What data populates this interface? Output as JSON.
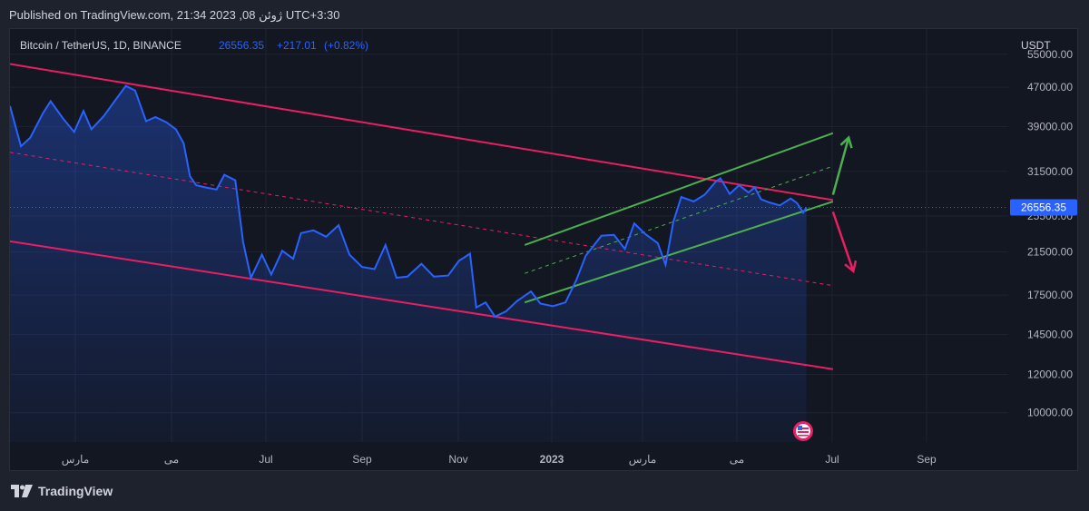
{
  "header": {
    "published_text": "Published on TradingView.com, 21:34 2023 ,08 ژوئن UTC+3:30"
  },
  "branding": {
    "logo_text": "TradingView"
  },
  "colors": {
    "background": "#131722",
    "price_line": "#2962ff",
    "channel_red": "#e91e63",
    "channel_green": "#4caf50",
    "axis_text": "#b2b5be",
    "last_price_badge": "#2962ff"
  },
  "chart_data": {
    "type": "line",
    "title": "Bitcoin / TetherUS, 1D, BINANCE",
    "symbol": "Bitcoin / TetherUS",
    "interval": "1D",
    "exchange": "BINANCE",
    "last_price": "26556.35",
    "change": "+217.01",
    "change_percent": "(+0.82%)",
    "currency_label": "USDT",
    "y_scale": "log",
    "y_ticks": [
      "55000.00",
      "47000.00",
      "39000.00",
      "31500.00",
      "25500.00",
      "21500.00",
      "17500.00",
      "14500.00",
      "12000.00",
      "10000.00"
    ],
    "x_ticks": [
      "مارس",
      "می",
      "Jul",
      "Sep",
      "Nov",
      "2023",
      "مارس",
      "می",
      "Jul",
      "Sep"
    ],
    "x_range": [
      "2022-01-15",
      "2023-10-15"
    ],
    "y_range": [
      8700,
      62000
    ],
    "series": [
      {
        "values": [
          [
            "2022-01-15",
            43000
          ],
          [
            "2022-01-22",
            35500
          ],
          [
            "2022-01-28",
            37000
          ],
          [
            "2022-02-05",
            41500
          ],
          [
            "2022-02-10",
            44000
          ],
          [
            "2022-02-18",
            40500
          ],
          [
            "2022-02-25",
            38000
          ],
          [
            "2022-03-03",
            42000
          ],
          [
            "2022-03-08",
            38500
          ],
          [
            "2022-03-16",
            41000
          ],
          [
            "2022-03-24",
            44500
          ],
          [
            "2022-03-30",
            47300
          ],
          [
            "2022-04-05",
            46300
          ],
          [
            "2022-04-12",
            40000
          ],
          [
            "2022-04-18",
            40800
          ],
          [
            "2022-04-25",
            39800
          ],
          [
            "2022-05-01",
            38500
          ],
          [
            "2022-05-06",
            36000
          ],
          [
            "2022-05-10",
            30800
          ],
          [
            "2022-05-14",
            29500
          ],
          [
            "2022-05-20",
            29200
          ],
          [
            "2022-05-27",
            28900
          ],
          [
            "2022-06-01",
            31000
          ],
          [
            "2022-06-08",
            30200
          ],
          [
            "2022-06-13",
            22500
          ],
          [
            "2022-06-18",
            19000
          ],
          [
            "2022-06-25",
            21200
          ],
          [
            "2022-07-01",
            19300
          ],
          [
            "2022-07-08",
            21600
          ],
          [
            "2022-07-15",
            20800
          ],
          [
            "2022-07-20",
            23500
          ],
          [
            "2022-07-28",
            23800
          ],
          [
            "2022-08-05",
            23100
          ],
          [
            "2022-08-13",
            24400
          ],
          [
            "2022-08-20",
            21200
          ],
          [
            "2022-08-28",
            20000
          ],
          [
            "2022-09-05",
            19800
          ],
          [
            "2022-09-12",
            22200
          ],
          [
            "2022-09-19",
            19000
          ],
          [
            "2022-09-26",
            19100
          ],
          [
            "2022-10-05",
            20300
          ],
          [
            "2022-10-13",
            19100
          ],
          [
            "2022-10-22",
            19200
          ],
          [
            "2022-10-29",
            20600
          ],
          [
            "2022-11-05",
            21300
          ],
          [
            "2022-11-09",
            16500
          ],
          [
            "2022-11-15",
            16900
          ],
          [
            "2022-11-21",
            15800
          ],
          [
            "2022-11-28",
            16200
          ],
          [
            "2022-12-05",
            17000
          ],
          [
            "2022-12-14",
            17800
          ],
          [
            "2022-12-20",
            16800
          ],
          [
            "2022-12-28",
            16600
          ],
          [
            "2023-01-05",
            16900
          ],
          [
            "2023-01-12",
            18800
          ],
          [
            "2023-01-18",
            21100
          ],
          [
            "2023-01-28",
            23200
          ],
          [
            "2023-02-05",
            23300
          ],
          [
            "2023-02-12",
            21800
          ],
          [
            "2023-02-18",
            24600
          ],
          [
            "2023-02-25",
            23400
          ],
          [
            "2023-03-05",
            22400
          ],
          [
            "2023-03-10",
            20200
          ],
          [
            "2023-03-15",
            24800
          ],
          [
            "2023-03-20",
            27900
          ],
          [
            "2023-03-28",
            27300
          ],
          [
            "2023-04-04",
            28200
          ],
          [
            "2023-04-11",
            30000
          ],
          [
            "2023-04-14",
            30500
          ],
          [
            "2023-04-20",
            28300
          ],
          [
            "2023-04-26",
            29500
          ],
          [
            "2023-05-02",
            28500
          ],
          [
            "2023-05-06",
            29200
          ],
          [
            "2023-05-10",
            27600
          ],
          [
            "2023-05-15",
            27200
          ],
          [
            "2023-05-22",
            26800
          ],
          [
            "2023-05-29",
            27700
          ],
          [
            "2023-06-02",
            27100
          ],
          [
            "2023-06-06",
            25900
          ],
          [
            "2023-06-08",
            26556
          ]
        ]
      }
    ],
    "drawings": {
      "red_channel_upper": [
        [
          "2022-01-15",
          52500
        ],
        [
          "2023-06-25",
          27500
        ]
      ],
      "red_channel_lower": [
        [
          "2022-01-15",
          22600
        ],
        [
          "2023-06-25",
          12300
        ]
      ],
      "red_channel_mid_dashed": [
        [
          "2022-01-15",
          34500
        ],
        [
          "2023-06-25",
          18300
        ]
      ],
      "green_channel_lower": [
        [
          "2022-12-10",
          16900
        ],
        [
          "2023-06-25",
          27300
        ]
      ],
      "green_channel_upper": [
        [
          "2022-12-10",
          22200
        ],
        [
          "2023-06-25",
          37800
        ]
      ],
      "green_channel_mid_dashed": [
        [
          "2022-12-10",
          19400
        ],
        [
          "2023-06-25",
          32300
        ]
      ],
      "green_arrow": [
        [
          "2023-06-25",
          28200
        ],
        [
          "2023-07-05",
          37000
        ]
      ],
      "red_arrow": [
        [
          "2023-06-25",
          26000
        ],
        [
          "2023-07-08",
          19600
        ]
      ]
    }
  }
}
